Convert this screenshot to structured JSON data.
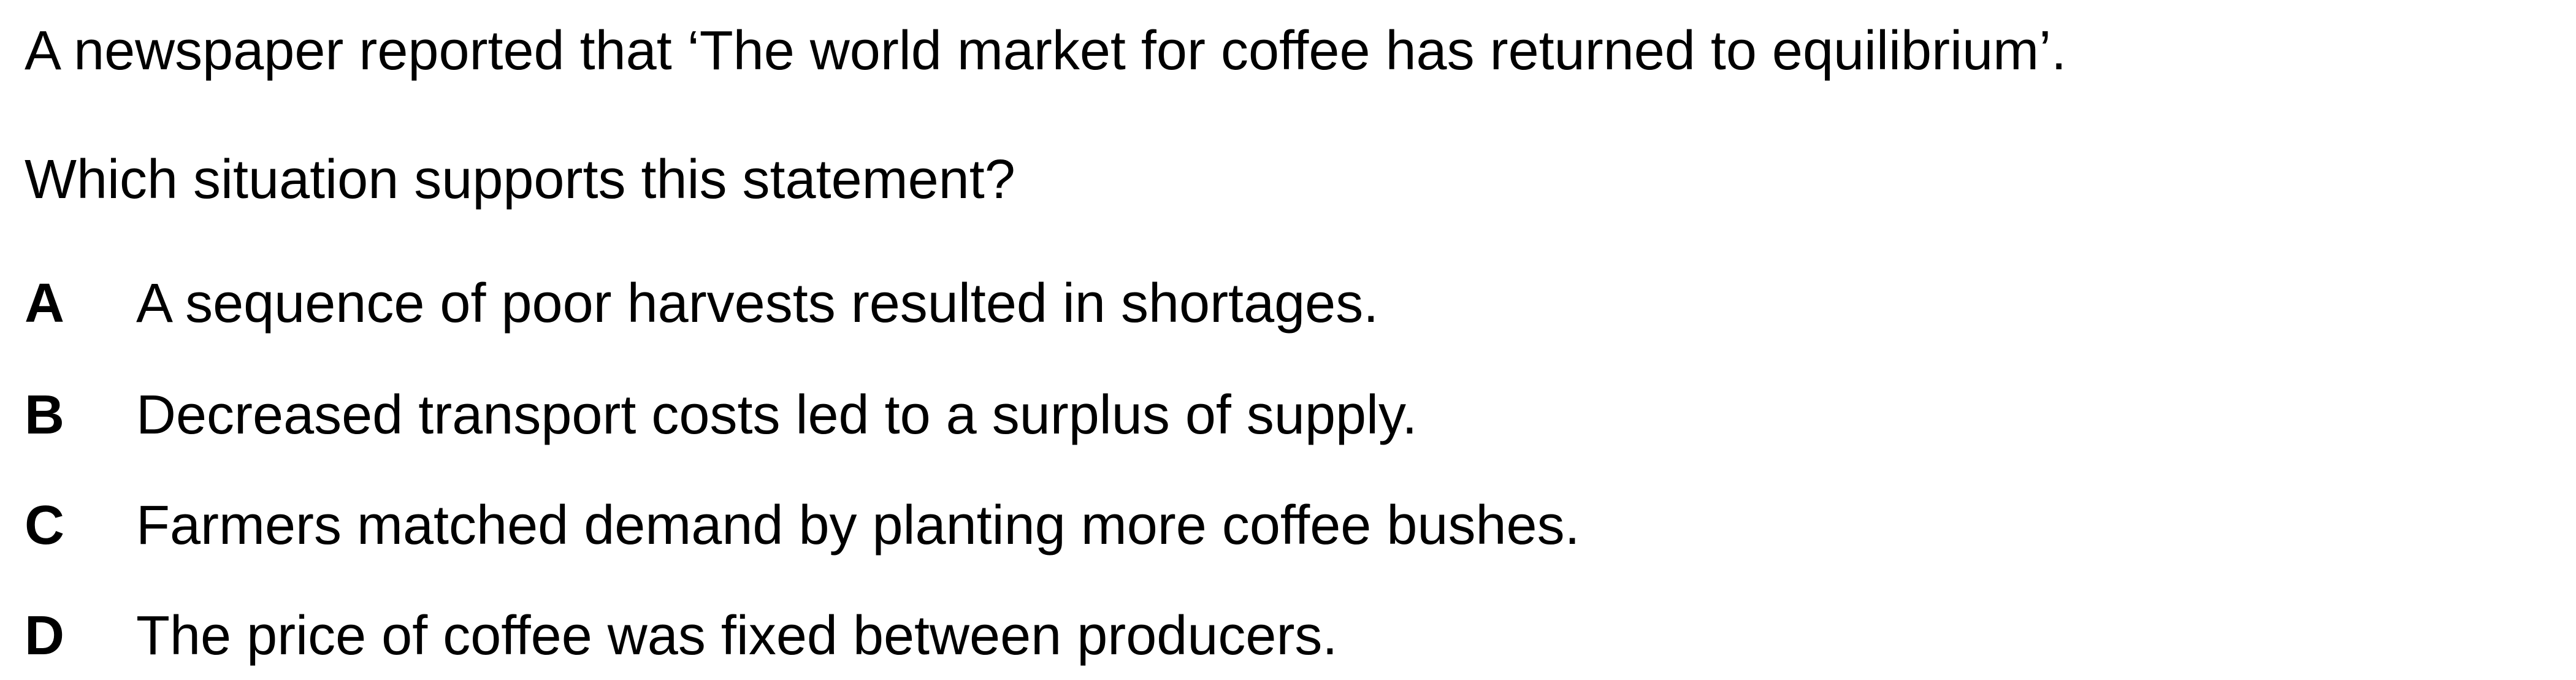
{
  "question": {
    "stem": "A newspaper reported that ‘The world market for coffee has returned to equilibrium’.",
    "prompt": "Which situation supports this statement?",
    "options": [
      {
        "letter": "A",
        "text": "A sequence of poor harvests resulted in shortages."
      },
      {
        "letter": "B",
        "text": "Decreased transport costs led to a surplus of supply."
      },
      {
        "letter": "C",
        "text": "Farmers matched demand by planting more coffee bushes."
      },
      {
        "letter": "D",
        "text": "The price of coffee was fixed between producers."
      }
    ]
  }
}
